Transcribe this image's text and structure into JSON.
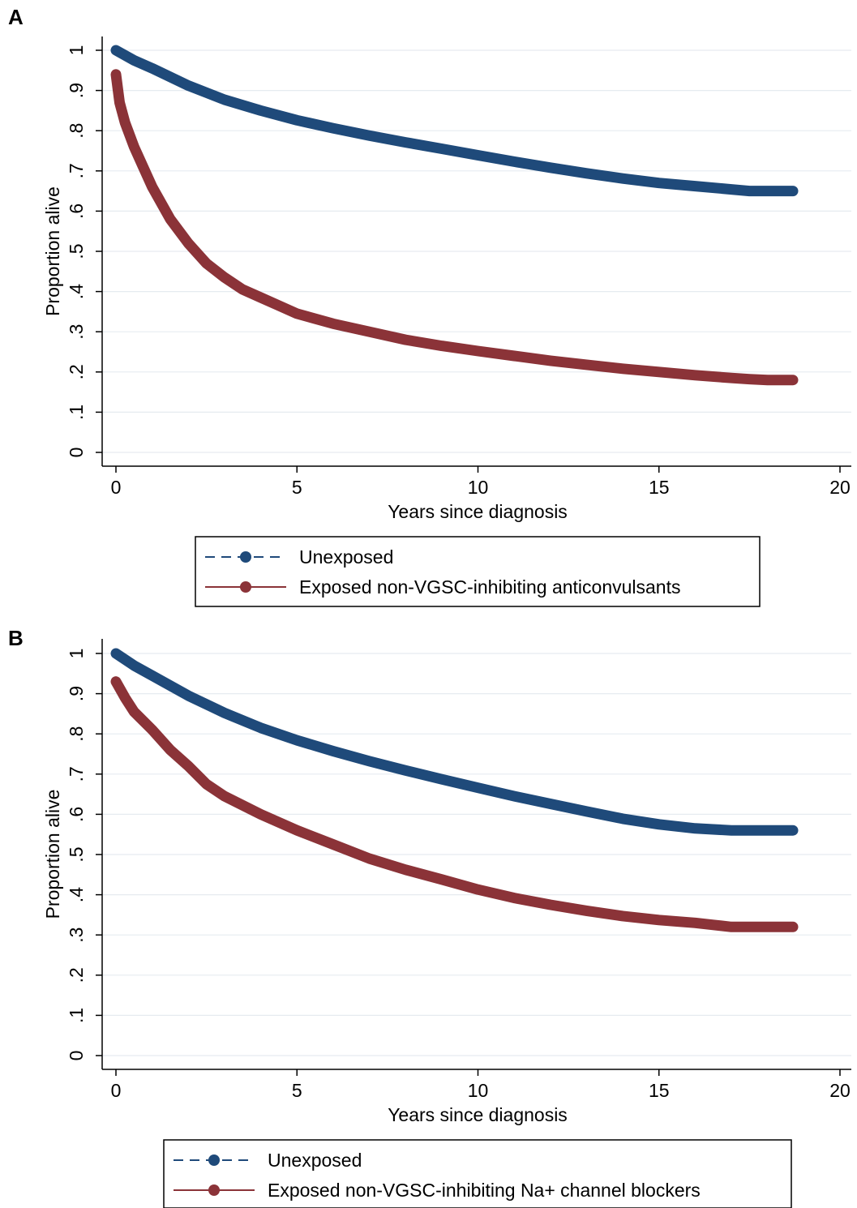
{
  "chart_data": [
    {
      "panel_label": "A",
      "type": "line",
      "xlabel": "Years since diagnosis",
      "ylabel": "Proportion alive",
      "xlim": [
        0,
        20
      ],
      "ylim": [
        0,
        1
      ],
      "x_ticks": [
        0,
        5,
        10,
        15,
        20
      ],
      "x_tick_labels": [
        "0",
        "5",
        "10",
        "15",
        "20"
      ],
      "y_ticks": [
        0,
        0.1,
        0.2,
        0.3,
        0.4,
        0.5,
        0.6,
        0.7,
        0.8,
        0.9,
        1
      ],
      "y_tick_labels": [
        "0",
        ".1",
        ".2",
        ".3",
        ".4",
        ".5",
        ".6",
        ".7",
        ".8",
        ".9",
        "1"
      ],
      "grid": true,
      "legend_position": "bottom",
      "series": [
        {
          "name": "Unexposed",
          "color": "#1f4a7a",
          "legend_line": "dashed",
          "x": [
            0,
            0.5,
            1,
            2,
            3,
            4,
            5,
            6,
            7,
            8,
            9,
            10,
            11,
            12,
            13,
            14,
            15,
            16,
            17,
            17.5,
            18,
            18.7
          ],
          "y": [
            1.0,
            0.975,
            0.955,
            0.912,
            0.877,
            0.85,
            0.826,
            0.806,
            0.788,
            0.771,
            0.755,
            0.739,
            0.723,
            0.708,
            0.694,
            0.681,
            0.67,
            0.662,
            0.654,
            0.65,
            0.65,
            0.65
          ]
        },
        {
          "name": "Exposed non-VGSC-inhibiting anticonvulsants",
          "color": "#8b3338",
          "legend_line": "solid",
          "x": [
            0,
            0.1,
            0.25,
            0.5,
            0.75,
            1,
            1.5,
            2,
            2.5,
            3,
            3.5,
            4,
            5,
            6,
            7,
            8,
            9,
            10,
            11,
            12,
            13,
            14,
            15,
            16,
            17,
            17.5,
            18,
            18.7
          ],
          "y": [
            0.94,
            0.87,
            0.82,
            0.76,
            0.71,
            0.66,
            0.58,
            0.52,
            0.47,
            0.435,
            0.405,
            0.385,
            0.345,
            0.32,
            0.3,
            0.28,
            0.265,
            0.252,
            0.24,
            0.228,
            0.218,
            0.208,
            0.2,
            0.192,
            0.185,
            0.182,
            0.18,
            0.18
          ]
        }
      ]
    },
    {
      "panel_label": "B",
      "type": "line",
      "xlabel": "Years since diagnosis",
      "ylabel": "Proportion alive",
      "xlim": [
        0,
        20
      ],
      "ylim": [
        0,
        1
      ],
      "x_ticks": [
        0,
        5,
        10,
        15,
        20
      ],
      "x_tick_labels": [
        "0",
        "5",
        "10",
        "15",
        "20"
      ],
      "y_ticks": [
        0,
        0.1,
        0.2,
        0.3,
        0.4,
        0.5,
        0.6,
        0.7,
        0.8,
        0.9,
        1
      ],
      "y_tick_labels": [
        "0",
        ".1",
        ".2",
        ".3",
        ".4",
        ".5",
        ".6",
        ".7",
        ".8",
        ".9",
        "1"
      ],
      "grid": true,
      "legend_position": "bottom",
      "series": [
        {
          "name": "Unexposed",
          "color": "#1f4a7a",
          "legend_line": "dashed",
          "x": [
            0,
            0.5,
            1,
            2,
            3,
            4,
            5,
            6,
            7,
            8,
            9,
            10,
            11,
            12,
            13,
            14,
            15,
            16,
            17,
            17.5,
            18,
            18.7
          ],
          "y": [
            1.0,
            0.97,
            0.945,
            0.895,
            0.852,
            0.815,
            0.784,
            0.757,
            0.732,
            0.709,
            0.687,
            0.666,
            0.645,
            0.626,
            0.607,
            0.589,
            0.575,
            0.565,
            0.56,
            0.56,
            0.56,
            0.56
          ]
        },
        {
          "name": "Exposed non-VGSC-inhibiting Na+ channel blockers",
          "color": "#8b3338",
          "legend_line": "solid",
          "x": [
            0,
            0.25,
            0.5,
            1,
            1.5,
            2,
            2.5,
            3,
            4,
            5,
            6,
            7,
            8,
            9,
            10,
            11,
            12,
            13,
            14,
            15,
            16,
            16.5,
            17,
            18,
            18.7
          ],
          "y": [
            0.93,
            0.89,
            0.855,
            0.81,
            0.76,
            0.72,
            0.675,
            0.645,
            0.6,
            0.56,
            0.525,
            0.49,
            0.462,
            0.438,
            0.413,
            0.392,
            0.375,
            0.36,
            0.347,
            0.337,
            0.33,
            0.325,
            0.32,
            0.32,
            0.32
          ]
        }
      ]
    }
  ]
}
